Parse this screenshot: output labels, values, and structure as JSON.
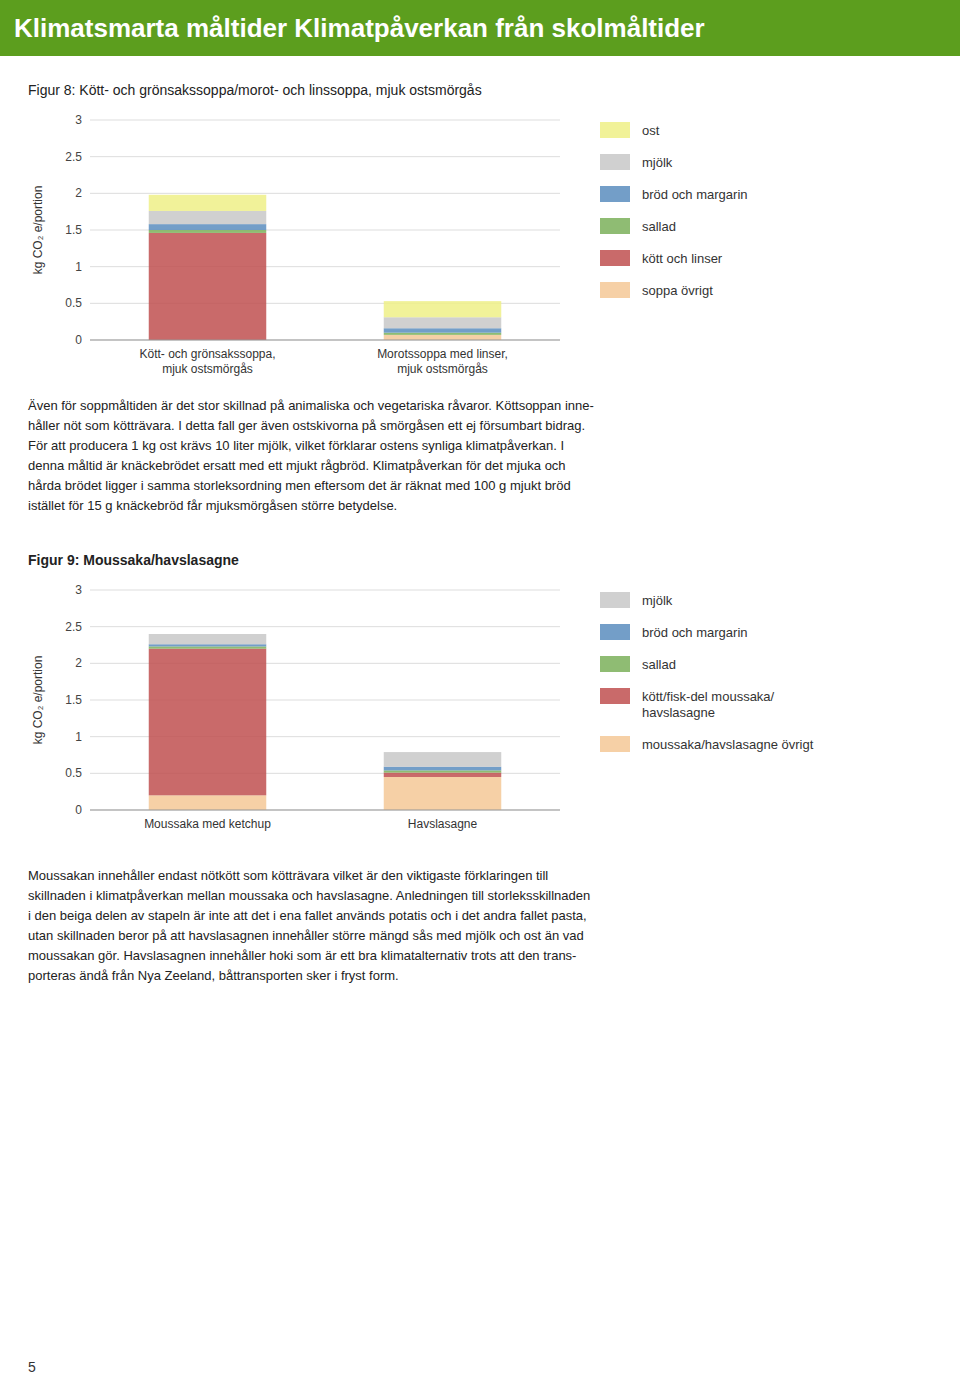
{
  "title": "Klimatsmarta måltider Klimatpåverkan från skolmåltider",
  "page_number": "5",
  "chart_data": [
    {
      "type": "bar",
      "stacked": true,
      "grid": true,
      "title": "Figur 8: Kött- och grönsakssoppa/morot- och linssoppa, mjuk ostsmörgås",
      "ylabel": "kg CO₂ e/portion",
      "categories": [
        "Kött- och grönsakssoppa,\nmjuk ostsmörgås",
        "Morotssoppa med linser,\nmjuk ostsmörgås"
      ],
      "ylim": [
        0,
        3
      ],
      "yticks": [
        0,
        0.5,
        1,
        1.5,
        2,
        2.5,
        3
      ],
      "series": [
        {
          "name": "soppa övrigt",
          "color": "#f5c896",
          "values": [
            0.0,
            0.07
          ]
        },
        {
          "name": "kött och linser",
          "color": "#c05050",
          "values": [
            1.46,
            0.0
          ]
        },
        {
          "name": "sallad",
          "color": "#7bb05a",
          "values": [
            0.04,
            0.03
          ]
        },
        {
          "name": "bröd och margarin",
          "color": "#5b8dbe",
          "values": [
            0.08,
            0.06
          ]
        },
        {
          "name": "mjölk",
          "color": "#c8c8c8",
          "values": [
            0.18,
            0.15
          ]
        },
        {
          "name": "ost",
          "color": "#eef087",
          "values": [
            0.22,
            0.22
          ]
        }
      ],
      "annotations": [
        "Även för soppmåltiden är det stor skillnad på animaliska och vegetariska råvaror. Köttsoppan inne-",
        "håller nöt som kötträvara. I detta fall ger även ostskivorna på smörgåsen ett ej försumbart bidrag.",
        "För att producera 1 kg ost krävs 10 liter mjölk, vilket förklarar ostens synliga klimatpåverkan. I",
        "denna måltid är knäckebrödet ersatt med ett mjukt rågbröd. Klimatpåverkan för det mjuka och",
        "hårda brödet ligger i samma storleksordning men eftersom det är räknat med 100 g mjukt bröd",
        "istället för 15 g knäckebröd får mjuksmörgåsen större betydelse."
      ]
    },
    {
      "type": "bar",
      "stacked": true,
      "grid": true,
      "title": "Figur 9: Moussaka/havslasagne",
      "ylabel": "kg CO₂ e/portion",
      "categories": [
        "Moussaka med ketchup",
        "Havslasagne"
      ],
      "ylim": [
        0,
        3
      ],
      "yticks": [
        0,
        0.5,
        1,
        1.5,
        2,
        2.5,
        3
      ],
      "series": [
        {
          "name": "moussaka/havslasagne övrigt",
          "color": "#f5c896",
          "values": [
            0.2,
            0.45
          ]
        },
        {
          "name": "kött/fisk-del moussaka/\nhavslasagne",
          "color": "#c05050",
          "values": [
            2.0,
            0.06
          ]
        },
        {
          "name": "sallad",
          "color": "#7bb05a",
          "values": [
            0.03,
            0.03
          ]
        },
        {
          "name": "bröd och margarin",
          "color": "#5b8dbe",
          "values": [
            0.03,
            0.05
          ]
        },
        {
          "name": "mjölk",
          "color": "#c8c8c8",
          "values": [
            0.14,
            0.2
          ]
        }
      ],
      "annotations": [
        "Moussakan innehåller endast nötkött som kötträvara vilket är den viktigaste förklaringen till",
        "skillnaden i klimatpåverkan mellan moussaka och havslasagne. Anledningen till storleksskillnaden",
        "i den beiga delen av stapeln är inte att det i ena fallet används potatis och i det andra fallet pasta,",
        "utan skillnaden beror på att havslasagnen innehåller större mängd sås med mjölk och ost än vad",
        "moussakan gör. Havslasagnen innehåller hoki som är ett bra klimatalternativ trots att den trans-",
        "porteras ändå från Nya Zeeland, båttransporten sker i fryst form."
      ]
    }
  ]
}
